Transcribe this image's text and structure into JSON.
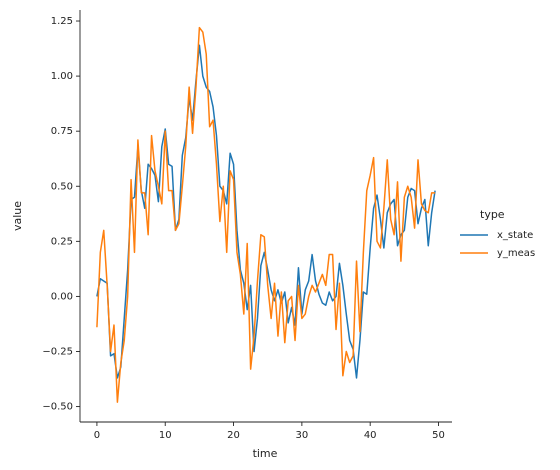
{
  "chart_data": {
    "type": "line",
    "x_label": "time",
    "y_label": "value",
    "legend_title": "type",
    "legend": "right",
    "x": [
      0,
      0.5,
      1,
      1.5,
      2,
      2.5,
      3,
      3.5,
      4,
      4.5,
      5,
      5.5,
      6,
      6.5,
      7,
      7.5,
      8,
      8.5,
      9,
      9.5,
      10,
      10.5,
      11,
      11.5,
      12,
      12.5,
      13,
      13.5,
      14,
      14.5,
      15,
      15.5,
      16,
      16.5,
      17,
      17.5,
      18,
      18.5,
      19,
      19.5,
      20,
      20.5,
      21,
      21.5,
      22,
      22.5,
      23,
      23.5,
      24,
      24.5,
      25,
      25.5,
      26,
      26.5,
      27,
      27.5,
      28,
      28.5,
      29,
      29.5,
      30,
      30.5,
      31,
      31.5,
      32,
      32.5,
      33,
      33.5,
      34,
      34.5,
      35,
      35.5,
      36,
      36.5,
      37,
      37.5,
      38,
      38.5,
      39,
      39.5,
      40,
      40.5,
      41,
      41.5,
      42,
      42.5,
      43,
      43.5,
      44,
      44.5,
      45,
      45.5,
      46,
      46.5,
      47,
      47.5,
      48,
      48.5,
      49,
      49.5
    ],
    "series": [
      {
        "name": "x_state",
        "color": "#1f77b4",
        "values": [
          0,
          0.08,
          0.07,
          0.06,
          -0.27,
          -0.26,
          -0.37,
          -0.32,
          -0.1,
          0.12,
          0.44,
          0.45,
          0.68,
          0.48,
          0.4,
          0.6,
          0.58,
          0.55,
          0.43,
          0.68,
          0.76,
          0.6,
          0.59,
          0.3,
          0.35,
          0.64,
          0.72,
          0.9,
          0.8,
          0.98,
          1.14,
          1.0,
          0.95,
          0.93,
          0.86,
          0.73,
          0.5,
          0.48,
          0.42,
          0.65,
          0.6,
          0.3,
          0.12,
          0.06,
          -0.06,
          0.05,
          -0.25,
          -0.1,
          0.14,
          0.2,
          0.12,
          0.03,
          -0.02,
          0.03,
          -0.03,
          0.02,
          -0.12,
          -0.05,
          -0.13,
          0.13,
          -0.08,
          0.03,
          0.07,
          0.19,
          0.07,
          0.01,
          -0.03,
          -0.04,
          0.02,
          -0.02,
          0,
          0.15,
          0.05,
          -0.08,
          -0.2,
          -0.24,
          -0.37,
          -0.2,
          0.02,
          0.01,
          0.22,
          0.4,
          0.46,
          0.35,
          0.22,
          0.38,
          0.42,
          0.44,
          0.23,
          0.28,
          0.3,
          0.45,
          0.49,
          0.48,
          0.33,
          0.4,
          0.44,
          0.23,
          0.38,
          0.48
        ]
      },
      {
        "name": "y_meas",
        "color": "#ff7f0e",
        "values": [
          -0.14,
          0.2,
          0.3,
          0.05,
          -0.25,
          -0.13,
          -0.48,
          -0.3,
          -0.2,
          0,
          0.53,
          0.2,
          0.71,
          0.47,
          0.47,
          0.28,
          0.73,
          0.57,
          0.5,
          0.42,
          0.75,
          0.48,
          0.48,
          0.3,
          0.33,
          0.5,
          0.68,
          0.95,
          0.74,
          0.95,
          1.22,
          1.2,
          1.1,
          0.77,
          0.8,
          0.6,
          0.34,
          0.5,
          0.2,
          0.57,
          0.53,
          0.2,
          0.1,
          -0.08,
          0.24,
          -0.33,
          -0.18,
          0.07,
          0.28,
          0.27,
          0.05,
          -0.1,
          0.06,
          -0.18,
          0.02,
          -0.21,
          -0.02,
          0,
          -0.2,
          0.05,
          -0.1,
          -0.08,
          0,
          0.05,
          0.02,
          0.06,
          0.1,
          0.05,
          0.19,
          0.19,
          -0.15,
          0.06,
          -0.36,
          -0.25,
          -0.3,
          -0.27,
          0.16,
          -0.16,
          0.2,
          0.48,
          0.55,
          0.63,
          0.25,
          0.22,
          0.4,
          0.62,
          0.35,
          0.28,
          0.52,
          0.16,
          0.45,
          0.5,
          0.45,
          0.31,
          0.62,
          0.42,
          0.39,
          0.38,
          0.47,
          0.47
        ]
      }
    ],
    "xlim": [
      -2.475,
      51.975
    ],
    "xticks": [
      0,
      10,
      20,
      30,
      40,
      50
    ],
    "ylim": [
      -0.57,
      1.3
    ],
    "yticks": [
      {
        "value": -0.5,
        "label": "−0.50"
      },
      {
        "value": -0.25,
        "label": "−0.25"
      },
      {
        "value": 0,
        "label": "0.00"
      },
      {
        "value": 0.25,
        "label": "0.25"
      },
      {
        "value": 0.5,
        "label": "0.50"
      },
      {
        "value": 0.75,
        "label": "0.75"
      },
      {
        "value": 1,
        "label": "1.00"
      },
      {
        "value": 1.25,
        "label": "1.25"
      }
    ]
  }
}
